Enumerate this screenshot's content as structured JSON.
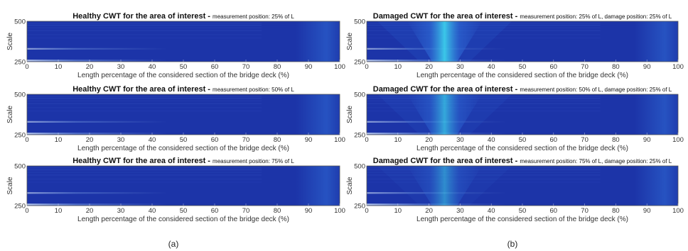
{
  "chart_data": [
    {
      "type": "heatmap",
      "panel": "(a)",
      "title_bold": "Healthy CWT for the area of interest -",
      "title_small": "measurement position: 25% of L",
      "xlabel": "Length percentage of the considered section of the bridge deck (%)",
      "ylabel": "Scale",
      "xlim": [
        0,
        100
      ],
      "ylim": [
        250,
        500
      ],
      "xticks": [
        "0",
        "10",
        "20",
        "30",
        "40",
        "50",
        "60",
        "70",
        "80",
        "90",
        "100"
      ],
      "yticks": [
        "500",
        "250"
      ]
    },
    {
      "type": "heatmap",
      "panel": "(b)",
      "title_bold": "Damaged CWT for the area of interest -",
      "title_small": "measurement position: 25% of L, damage position: 25% of L",
      "xlabel": "Length percentage of the considered section of the bridge deck (%)",
      "ylabel": "Scale",
      "xlim": [
        0,
        100
      ],
      "ylim": [
        250,
        500
      ],
      "xticks": [
        "0",
        "10",
        "20",
        "30",
        "40",
        "50",
        "60",
        "70",
        "80",
        "90",
        "100"
      ],
      "yticks": [
        "500",
        "250"
      ],
      "damage_position_percent": 25
    },
    {
      "type": "heatmap",
      "panel": "(a)",
      "title_bold": "Healthy CWT for the area of interest -",
      "title_small": "measurement position: 50% of L",
      "xlabel": "Length percentage of the considered section of the bridge deck (%)",
      "ylabel": "Scale",
      "xlim": [
        0,
        100
      ],
      "ylim": [
        250,
        500
      ],
      "xticks": [
        "0",
        "10",
        "20",
        "30",
        "40",
        "50",
        "60",
        "70",
        "80",
        "90",
        "100"
      ],
      "yticks": [
        "500",
        "250"
      ]
    },
    {
      "type": "heatmap",
      "panel": "(b)",
      "title_bold": "Damaged CWT for the area of interest -",
      "title_small": "measurement position: 50% of L, damage position: 25% of L",
      "xlabel": "Length percentage of the considered section of the bridge deck (%)",
      "ylabel": "Scale",
      "xlim": [
        0,
        100
      ],
      "ylim": [
        250,
        500
      ],
      "xticks": [
        "0",
        "10",
        "20",
        "30",
        "40",
        "50",
        "60",
        "70",
        "80",
        "90",
        "100"
      ],
      "yticks": [
        "500",
        "250"
      ],
      "damage_position_percent": 25
    },
    {
      "type": "heatmap",
      "panel": "(a)",
      "title_bold": "Healthy CWT for the area of interest -",
      "title_small": "measurement position: 75% of L",
      "xlabel": "Length percentage of the considered section of the bridge deck (%)",
      "ylabel": "Scale",
      "xlim": [
        0,
        100
      ],
      "ylim": [
        250,
        500
      ],
      "xticks": [
        "0",
        "10",
        "20",
        "30",
        "40",
        "50",
        "60",
        "70",
        "80",
        "90",
        "100"
      ],
      "yticks": [
        "500",
        "250"
      ]
    },
    {
      "type": "heatmap",
      "panel": "(b)",
      "title_bold": "Damaged CWT for the area of interest -",
      "title_small": "measurement position: 75% of L, damage position: 25% of L",
      "xlabel": "Length percentage of the considered section of the bridge deck (%)",
      "ylabel": "Scale",
      "xlim": [
        0,
        100
      ],
      "ylim": [
        250,
        500
      ],
      "xticks": [
        "0",
        "10",
        "20",
        "30",
        "40",
        "50",
        "60",
        "70",
        "80",
        "90",
        "100"
      ],
      "yticks": [
        "500",
        "250"
      ],
      "damage_position_percent": 25
    }
  ],
  "captions": {
    "left": "(a)",
    "right": "(b)"
  },
  "colors": {
    "base": "#1c34a8",
    "mid": "#2f6cd6",
    "bright": "#40e6f0"
  }
}
